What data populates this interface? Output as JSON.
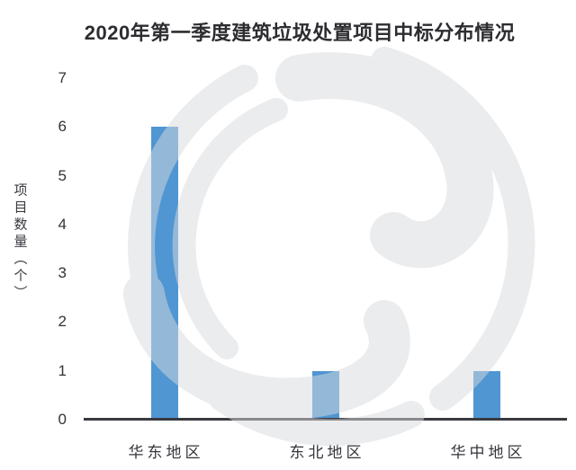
{
  "title": "2020年第一季度建筑垃圾处置项目中标分布情况",
  "chart_data": {
    "type": "bar",
    "title": "2020年第一季度建筑垃圾处置项目中标分布情况",
    "categories": [
      "华东地区",
      "东北地区",
      "华中地区"
    ],
    "values": [
      6,
      1,
      1
    ],
    "xlabel": "",
    "ylabel": "项目数量（个）",
    "ylim": [
      0,
      7
    ],
    "ytick_step": 1,
    "yticks": [
      0,
      1,
      2,
      3,
      4,
      5,
      6,
      7
    ],
    "grid": false,
    "legend": false,
    "bar_color": "#4f96d2",
    "axis_color": "#3a3a40",
    "text_color": "#333338"
  },
  "watermark": {
    "icon": "swirl-sphere-logo",
    "color": "#d9dade",
    "opacity": 0.5
  }
}
